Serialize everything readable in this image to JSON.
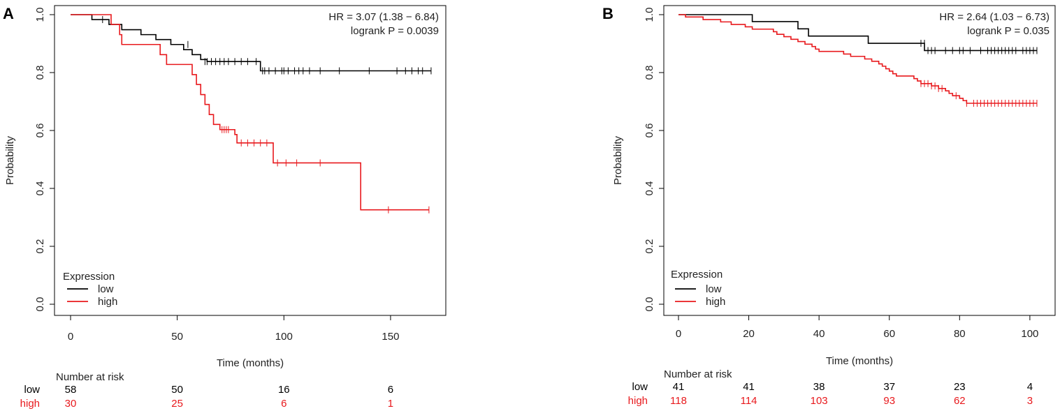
{
  "chart_data": [
    {
      "type": "line",
      "subtype": "kaplan-meier",
      "panel_label": "A",
      "title": "",
      "xlabel": "Time (months)",
      "ylabel": "Probability",
      "xlim": [
        0,
        170
      ],
      "ylim": [
        0,
        1
      ],
      "xticks": [
        0,
        50,
        100,
        150
      ],
      "yticks": [
        0.0,
        0.2,
        0.4,
        0.6,
        0.8,
        1.0
      ],
      "ytick_labels": [
        "0.0",
        "0.2",
        "0.4",
        "0.6",
        "0.8",
        "1.0"
      ],
      "annotations": [
        "HR = 3.07 (1.38 − 6.84)",
        "logrank P = 0.0039"
      ],
      "legend": {
        "title": "Expression",
        "entries": [
          "low",
          "high"
        ],
        "position": "bottom-left"
      },
      "series": [
        {
          "name": "low",
          "color": "#000000",
          "steps": [
            [
              0,
              1.0
            ],
            [
              10,
              0.983
            ],
            [
              18,
              0.966
            ],
            [
              24,
              0.948
            ],
            [
              33,
              0.931
            ],
            [
              40,
              0.914
            ],
            [
              47,
              0.897
            ],
            [
              53,
              0.879
            ],
            [
              57,
              0.862
            ],
            [
              61,
              0.845
            ],
            [
              64,
              0.838
            ],
            [
              89,
              0.806
            ],
            [
              169,
              0.806
            ]
          ],
          "censors": [
            [
              15,
              0.983
            ],
            [
              55,
              0.897
            ],
            [
              63,
              0.838
            ],
            [
              64,
              0.838
            ],
            [
              66,
              0.838
            ],
            [
              68,
              0.838
            ],
            [
              70,
              0.838
            ],
            [
              72,
              0.838
            ],
            [
              74,
              0.838
            ],
            [
              77,
              0.838
            ],
            [
              80,
              0.838
            ],
            [
              83,
              0.838
            ],
            [
              87,
              0.838
            ],
            [
              90,
              0.806
            ],
            [
              91,
              0.806
            ],
            [
              93,
              0.806
            ],
            [
              96,
              0.806
            ],
            [
              99,
              0.806
            ],
            [
              100,
              0.806
            ],
            [
              102,
              0.806
            ],
            [
              105,
              0.806
            ],
            [
              107,
              0.806
            ],
            [
              109,
              0.806
            ],
            [
              112,
              0.806
            ],
            [
              117,
              0.806
            ],
            [
              126,
              0.806
            ],
            [
              140,
              0.806
            ],
            [
              153,
              0.806
            ],
            [
              157,
              0.806
            ],
            [
              160,
              0.806
            ],
            [
              163,
              0.806
            ],
            [
              165,
              0.806
            ],
            [
              169,
              0.806
            ]
          ]
        },
        {
          "name": "high",
          "color": "#e8191d",
          "steps": [
            [
              0,
              1.0
            ],
            [
              19,
              0.966
            ],
            [
              23,
              0.931
            ],
            [
              24,
              0.897
            ],
            [
              42,
              0.862
            ],
            [
              45,
              0.828
            ],
            [
              57,
              0.793
            ],
            [
              59,
              0.759
            ],
            [
              61,
              0.724
            ],
            [
              63,
              0.69
            ],
            [
              65,
              0.655
            ],
            [
              67,
              0.621
            ],
            [
              70,
              0.603
            ],
            [
              77,
              0.586
            ],
            [
              78,
              0.557
            ],
            [
              95,
              0.488
            ],
            [
              136,
              0.326
            ],
            [
              168,
              0.326
            ]
          ],
          "censors": [
            [
              71,
              0.603
            ],
            [
              72,
              0.603
            ],
            [
              73,
              0.603
            ],
            [
              74,
              0.603
            ],
            [
              80,
              0.557
            ],
            [
              83,
              0.557
            ],
            [
              86,
              0.557
            ],
            [
              89,
              0.557
            ],
            [
              92,
              0.557
            ],
            [
              97,
              0.488
            ],
            [
              101,
              0.488
            ],
            [
              106,
              0.488
            ],
            [
              117,
              0.488
            ],
            [
              149,
              0.326
            ],
            [
              168,
              0.326
            ]
          ]
        }
      ],
      "risk_table": {
        "title": "Number at risk",
        "times": [
          0,
          50,
          100,
          150
        ],
        "rows": [
          {
            "label": "low",
            "color": "#000000",
            "values": [
              "58",
              "50",
              "16",
              "6"
            ]
          },
          {
            "label": "high",
            "color": "#e8191d",
            "values": [
              "30",
              "25",
              "6",
              "1"
            ]
          }
        ]
      }
    },
    {
      "type": "line",
      "subtype": "kaplan-meier",
      "panel_label": "B",
      "title": "",
      "xlabel": "Time (months)",
      "ylabel": "Probability",
      "xlim": [
        0,
        104
      ],
      "ylim": [
        0,
        1
      ],
      "xticks": [
        0,
        20,
        40,
        60,
        80,
        100
      ],
      "yticks": [
        0.0,
        0.2,
        0.4,
        0.6,
        0.8,
        1.0
      ],
      "ytick_labels": [
        "0.0",
        "0.2",
        "0.4",
        "0.6",
        "0.8",
        "1.0"
      ],
      "annotations": [
        "HR = 2.64 (1.03 − 6.73)",
        "logrank P = 0.035"
      ],
      "legend": {
        "title": "Expression",
        "entries": [
          "low",
          "high"
        ],
        "position": "bottom-left"
      },
      "series": [
        {
          "name": "low",
          "color": "#000000",
          "steps": [
            [
              0,
              1.0
            ],
            [
              21,
              0.976
            ],
            [
              34,
              0.951
            ],
            [
              37,
              0.926
            ],
            [
              54,
              0.901
            ],
            [
              70,
              0.876
            ],
            [
              102,
              0.876
            ]
          ],
          "censors": [
            [
              69,
              0.901
            ],
            [
              70,
              0.901
            ],
            [
              71,
              0.876
            ],
            [
              72,
              0.876
            ],
            [
              73,
              0.876
            ],
            [
              76,
              0.876
            ],
            [
              78,
              0.876
            ],
            [
              80,
              0.876
            ],
            [
              81,
              0.876
            ],
            [
              83,
              0.876
            ],
            [
              86,
              0.876
            ],
            [
              88,
              0.876
            ],
            [
              89,
              0.876
            ],
            [
              90,
              0.876
            ],
            [
              91,
              0.876
            ],
            [
              92,
              0.876
            ],
            [
              93,
              0.876
            ],
            [
              94,
              0.876
            ],
            [
              95,
              0.876
            ],
            [
              96,
              0.876
            ],
            [
              98,
              0.876
            ],
            [
              99,
              0.876
            ],
            [
              100,
              0.876
            ],
            [
              101,
              0.876
            ],
            [
              102,
              0.876
            ]
          ]
        },
        {
          "name": "high",
          "color": "#e8191d",
          "steps": [
            [
              0,
              1.0
            ],
            [
              2,
              0.992
            ],
            [
              7,
              0.983
            ],
            [
              12,
              0.975
            ],
            [
              15,
              0.966
            ],
            [
              19,
              0.958
            ],
            [
              21,
              0.95
            ],
            [
              27,
              0.941
            ],
            [
              28,
              0.932
            ],
            [
              30,
              0.924
            ],
            [
              32,
              0.915
            ],
            [
              34,
              0.907
            ],
            [
              36,
              0.898
            ],
            [
              38,
              0.89
            ],
            [
              39,
              0.881
            ],
            [
              40,
              0.873
            ],
            [
              47,
              0.864
            ],
            [
              49,
              0.856
            ],
            [
              53,
              0.847
            ],
            [
              55,
              0.839
            ],
            [
              57,
              0.83
            ],
            [
              58,
              0.822
            ],
            [
              59,
              0.813
            ],
            [
              60,
              0.805
            ],
            [
              61,
              0.796
            ],
            [
              62,
              0.788
            ],
            [
              67,
              0.779
            ],
            [
              68,
              0.771
            ],
            [
              69,
              0.762
            ],
            [
              72,
              0.754
            ],
            [
              74,
              0.745
            ],
            [
              76,
              0.737
            ],
            [
              77,
              0.728
            ],
            [
              78,
              0.72
            ],
            [
              80,
              0.711
            ],
            [
              81,
              0.703
            ],
            [
              82,
              0.694
            ],
            [
              102,
              0.694
            ]
          ],
          "censors": [
            [
              69,
              0.762
            ],
            [
              70,
              0.762
            ],
            [
              71,
              0.762
            ],
            [
              72,
              0.754
            ],
            [
              73,
              0.754
            ],
            [
              74,
              0.745
            ],
            [
              75,
              0.745
            ],
            [
              79,
              0.72
            ],
            [
              82,
              0.694
            ],
            [
              84,
              0.694
            ],
            [
              85,
              0.694
            ],
            [
              86,
              0.694
            ],
            [
              87,
              0.694
            ],
            [
              88,
              0.694
            ],
            [
              89,
              0.694
            ],
            [
              90,
              0.694
            ],
            [
              91,
              0.694
            ],
            [
              92,
              0.694
            ],
            [
              93,
              0.694
            ],
            [
              94,
              0.694
            ],
            [
              95,
              0.694
            ],
            [
              96,
              0.694
            ],
            [
              97,
              0.694
            ],
            [
              98,
              0.694
            ],
            [
              99,
              0.694
            ],
            [
              100,
              0.694
            ],
            [
              101,
              0.694
            ],
            [
              102,
              0.694
            ]
          ]
        }
      ],
      "risk_table": {
        "title": "Number at risk",
        "times": [
          0,
          20,
          40,
          60,
          80,
          100
        ],
        "rows": [
          {
            "label": "low",
            "color": "#000000",
            "values": [
              "41",
              "41",
              "38",
              "37",
              "23",
              "4"
            ]
          },
          {
            "label": "high",
            "color": "#e8191d",
            "values": [
              "118",
              "114",
              "103",
              "93",
              "62",
              "3"
            ]
          }
        ]
      }
    }
  ]
}
